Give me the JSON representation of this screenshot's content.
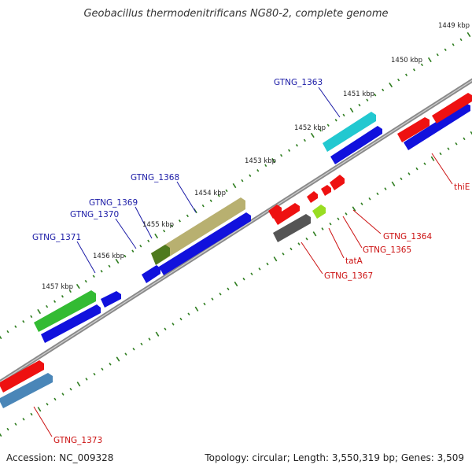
{
  "title": "Geobacillus thermodenitrificans NG80-2, complete genome",
  "footer": {
    "accession": "Accession: NC_009328",
    "summary": "Topology: circular; Length: 3,550,319 bp; Genes: 3,509"
  },
  "colors": {
    "backbone": "#8a8a8a",
    "tick": "#2e7d1f",
    "label_blue": "#1a1aa6",
    "label_red": "#cc1111"
  },
  "ticks": [
    "1449 kbp",
    "1450 kbp",
    "1451 kbp",
    "1452 kbp",
    "1453 kbp",
    "1454 kbp",
    "1455 kbp",
    "1456 kbp",
    "1457 kbp"
  ],
  "genes_top": [
    {
      "name": "GTNG_1363",
      "color": "#22c8d0"
    },
    {
      "name": "GTNG_1368",
      "color": "#b8b070"
    },
    {
      "name": "GTNG_1369",
      "color": "#4f7a1e"
    },
    {
      "name": "GTNG_1370",
      "color": "#1111dd"
    },
    {
      "name": "GTNG_1371",
      "color": "#33bb33"
    }
  ],
  "genes_bottom": [
    {
      "name": "thiE",
      "color": "#ee1111"
    },
    {
      "name": "GTNG_1364",
      "color": "#ee1111"
    },
    {
      "name": "GTNG_1365",
      "color": "#99dd22"
    },
    {
      "name": "tatA",
      "color": "#ee1111"
    },
    {
      "name": "GTNG_1367",
      "color": "#555555"
    },
    {
      "name": "GTNG_1373",
      "color": "#4a86b8"
    }
  ]
}
